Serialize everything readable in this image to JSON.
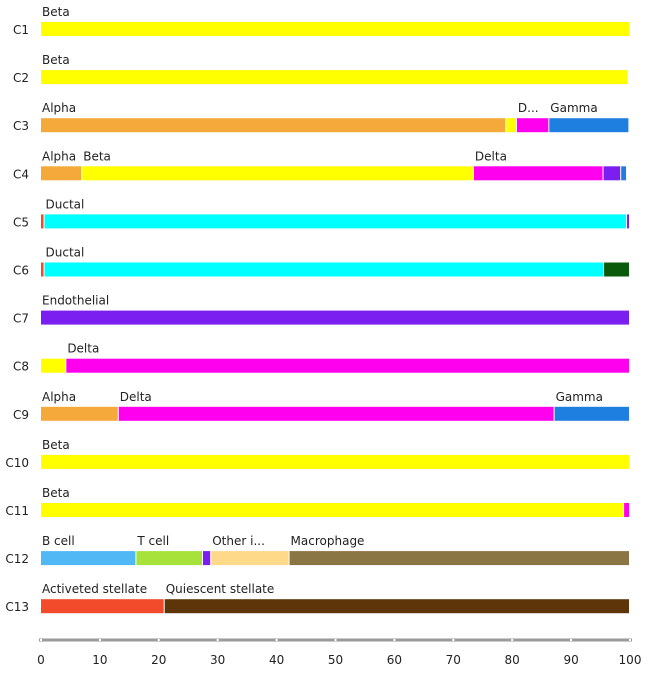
{
  "chart_data": {
    "type": "bar",
    "orientation": "horizontal",
    "stacked": true,
    "xlim": [
      0,
      100
    ],
    "x_ticks": [
      0,
      10,
      20,
      30,
      40,
      50,
      60,
      70,
      80,
      90,
      100
    ],
    "grid": false,
    "rows": [
      {
        "label": "C1",
        "segments": [
          {
            "name": "Beta",
            "value": 100,
            "color": "#ffff00"
          }
        ]
      },
      {
        "label": "C2",
        "segments": [
          {
            "name": "Beta",
            "value": 99.7,
            "color": "#ffff00"
          }
        ]
      },
      {
        "label": "C3",
        "segments": [
          {
            "name": "Alpha",
            "value": 79,
            "color": "#f5a93a"
          },
          {
            "name": "",
            "value": 1.8,
            "color": "#ffff00"
          },
          {
            "name": "D...",
            "value": 5.5,
            "color": "#ff00ee"
          },
          {
            "name": "Gamma",
            "value": 13.6,
            "color": "#1f7fe0"
          }
        ]
      },
      {
        "label": "C4",
        "segments": [
          {
            "name": "Alpha",
            "value": 7,
            "color": "#f5a93a"
          },
          {
            "name": "Beta",
            "value": 66.5,
            "color": "#ffff00"
          },
          {
            "name": "Delta",
            "value": 22,
            "color": "#ff00ee"
          },
          {
            "name": "",
            "value": 3,
            "color": "#7a1fef"
          },
          {
            "name": "",
            "value": 1,
            "color": "#1f7fe0"
          }
        ]
      },
      {
        "label": "C5",
        "segments": [
          {
            "name": "",
            "value": 0.6,
            "color": "#f24b2c"
          },
          {
            "name": "Ductal",
            "value": 98.9,
            "color": "#00ffff"
          },
          {
            "name": "",
            "value": 0.5,
            "color": "#7a1fef"
          }
        ]
      },
      {
        "label": "C6",
        "segments": [
          {
            "name": "",
            "value": 0.6,
            "color": "#f24b2c"
          },
          {
            "name": "Ductal",
            "value": 95,
            "color": "#00ffff"
          },
          {
            "name": "",
            "value": 4.4,
            "color": "#0b5a0b"
          }
        ]
      },
      {
        "label": "C7",
        "segments": [
          {
            "name": "Endothelial",
            "value": 100,
            "color": "#7a1fef"
          }
        ]
      },
      {
        "label": "C8",
        "segments": [
          {
            "name": "",
            "value": 4.3,
            "color": "#ffff00"
          },
          {
            "name": "Delta",
            "value": 95.7,
            "color": "#ff00ee"
          }
        ]
      },
      {
        "label": "C9",
        "segments": [
          {
            "name": "Alpha",
            "value": 13.2,
            "color": "#f5a93a"
          },
          {
            "name": "Delta",
            "value": 74,
            "color": "#ff00ee"
          },
          {
            "name": "Gamma",
            "value": 12.8,
            "color": "#1f7fe0"
          }
        ]
      },
      {
        "label": "C10",
        "segments": [
          {
            "name": "Beta",
            "value": 100,
            "color": "#ffff00"
          }
        ]
      },
      {
        "label": "C11",
        "segments": [
          {
            "name": "Beta",
            "value": 99,
            "color": "#ffff00"
          },
          {
            "name": "",
            "value": 1,
            "color": "#ff00ee"
          }
        ]
      },
      {
        "label": "C12",
        "segments": [
          {
            "name": "B cell",
            "value": 16.2,
            "color": "#4fb8f5"
          },
          {
            "name": "T cell",
            "value": 11.3,
            "color": "#a6e23a"
          },
          {
            "name": "",
            "value": 1.4,
            "color": "#7a1fef"
          },
          {
            "name": "Other i...",
            "value": 13.3,
            "color": "#ffd98a"
          },
          {
            "name": "Macrophage",
            "value": 57.8,
            "color": "#8a7544"
          }
        ]
      },
      {
        "label": "C13",
        "segments": [
          {
            "name": "Activeted stellate",
            "value": 21,
            "color": "#f24b2c"
          },
          {
            "name": "Quiescent stellate",
            "value": 79,
            "color": "#5e3508"
          }
        ]
      }
    ]
  }
}
